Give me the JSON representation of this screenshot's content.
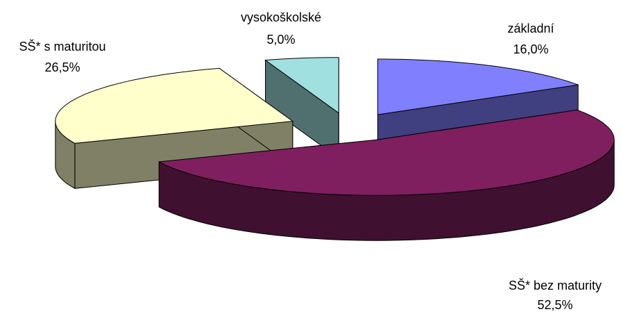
{
  "chart_data": {
    "type": "pie3d",
    "categories": [
      "základní",
      "SŠ* bez maturity",
      "SŠ* s maturitou",
      "vysokoškolské"
    ],
    "values": [
      16.0,
      52.5,
      26.5,
      5.0
    ],
    "value_labels": [
      "16,0%",
      "52,5%",
      "26,5%",
      "5,0%"
    ],
    "colors": [
      "#8080ff",
      "#7f1f5f",
      "#ffffcc",
      "#a0e0e0"
    ]
  }
}
